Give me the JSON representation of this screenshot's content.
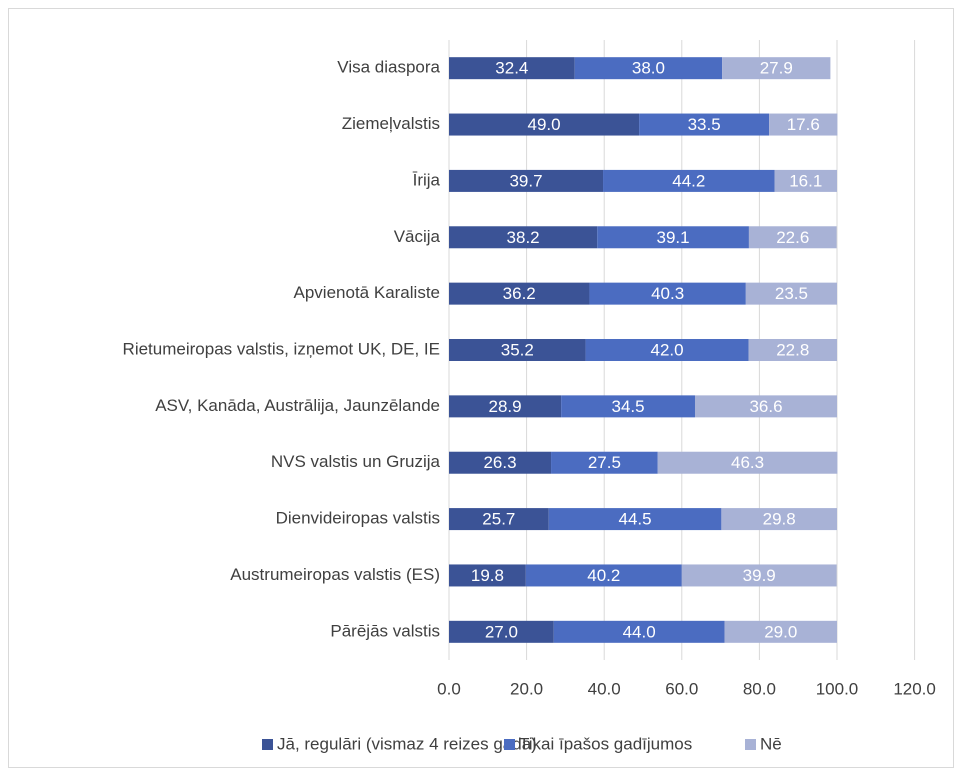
{
  "chart_data": {
    "type": "stacked-barh",
    "categories": [
      "Visa diaspora",
      "Ziemeļvalstis",
      "Īrija",
      "Vācija",
      "Apvienotā Karaliste",
      "Rietumeiropas valstis, izņemot UK, DE, IE",
      "ASV, Kanāda, Austrālija, Jaunzēlande",
      "NVS valstis un Gruzija",
      "Dienvideiropas valstis",
      "Austrumeiropas valstis (ES)",
      "Pārējās valstis"
    ],
    "series": [
      {
        "name": "Jā, regulāri (vismaz 4 reizes gadā)",
        "color": "#3b5396",
        "values": [
          32.4,
          49.0,
          39.7,
          38.2,
          36.2,
          35.2,
          28.9,
          26.3,
          25.7,
          19.8,
          27.0
        ],
        "value_labels": [
          "32.4",
          "49.0",
          "39.7",
          "38.2",
          "36.2",
          "35.2",
          "28.9",
          "26.3",
          "25.7",
          "19.8",
          "27.0"
        ]
      },
      {
        "name": "Tikai īpašos gadījumos",
        "color": "#4b6cc1",
        "values": [
          38.0,
          33.5,
          44.2,
          39.1,
          40.3,
          42.0,
          34.5,
          27.5,
          44.5,
          40.2,
          44.0
        ],
        "value_labels": [
          "38.0",
          "33.5",
          "44.2",
          "39.1",
          "40.3",
          "42.0",
          "34.5",
          "27.5",
          "44.5",
          "40.2",
          "44.0"
        ]
      },
      {
        "name": "Nē",
        "color": "#a8b2d6",
        "values": [
          27.9,
          17.6,
          16.1,
          22.6,
          23.5,
          22.8,
          36.6,
          46.3,
          29.8,
          39.9,
          29.0
        ],
        "value_labels": [
          "27.9",
          "17.6",
          "16.1",
          "22.6",
          "23.5",
          "22.8",
          "36.6",
          "46.3",
          "29.8",
          "39.9",
          "29.0"
        ]
      }
    ],
    "xlim": [
      0,
      120
    ],
    "xticks": [
      {
        "value": 0,
        "label": "0.0"
      },
      {
        "value": 20,
        "label": "20.0"
      },
      {
        "value": 40,
        "label": "40.0"
      },
      {
        "value": 60,
        "label": "60.0"
      },
      {
        "value": 80,
        "label": "80.0"
      },
      {
        "value": 100,
        "label": "100.0"
      },
      {
        "value": 120,
        "label": "120.0"
      }
    ],
    "grid": true,
    "legend": "bottom"
  }
}
